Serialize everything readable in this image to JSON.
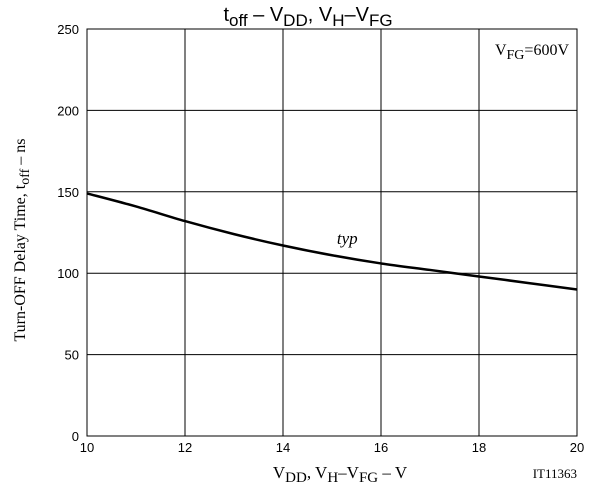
{
  "chart_data": {
    "type": "line",
    "title": {
      "parts": [
        "t",
        "off",
        " – V",
        "DD",
        ", V",
        "H",
        "–V",
        "FG"
      ]
    },
    "xlabel": {
      "parts": [
        "V",
        "DD",
        ", V",
        "H",
        "–V",
        "FG",
        " – V"
      ]
    },
    "ylabel": {
      "parts": [
        "Turn-OFF Delay Time, t",
        "off",
        " – ns"
      ]
    },
    "condition": {
      "parts": [
        "V",
        "FG",
        "=600V"
      ]
    },
    "figure_id": "IT11363",
    "xlim": [
      10,
      20
    ],
    "ylim": [
      0,
      250
    ],
    "xticks": [
      10,
      12,
      14,
      16,
      18,
      20
    ],
    "yticks": [
      0,
      50,
      100,
      150,
      200,
      250
    ],
    "grid": true,
    "series": [
      {
        "name": "typ",
        "x": [
          10,
          11,
          12,
          13,
          14,
          15,
          16,
          17,
          18,
          19,
          20
        ],
        "y": [
          149,
          141,
          132,
          124,
          117,
          111,
          106,
          102,
          98,
          94,
          90
        ]
      }
    ],
    "annotations": [
      {
        "text": "typ",
        "x": 15.1,
        "y": 118
      }
    ],
    "colors": {
      "line": "#000000",
      "grid": "#000000"
    }
  }
}
